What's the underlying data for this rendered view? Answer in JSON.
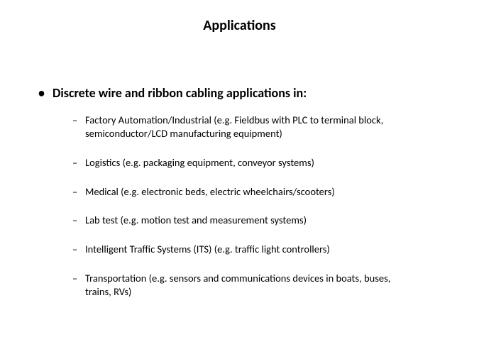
{
  "title": "Applications",
  "main_bullet": "Discrete wire and ribbon cabling applications in:",
  "sub_items": [
    "Factory Automation/Industrial (e.g. Fieldbus with PLC to terminal block, semiconductor/LCD manufacturing equipment)",
    "Logistics (e.g. packaging equipment, conveyor systems)",
    "Medical (e.g. electronic beds, electric wheelchairs/scooters)",
    "Lab test (e.g. motion test and measurement systems)",
    "Intelligent Traffic Systems (ITS)  (e.g. traffic light controllers)",
    "Transportation (e.g. sensors and communications devices in boats, buses, trains, RVs)"
  ],
  "colors": {
    "background": "#ffffff",
    "text": "#000000"
  },
  "fonts": {
    "title_size": 20,
    "main_size": 18,
    "sub_size": 14.5,
    "family": "Calibri"
  }
}
